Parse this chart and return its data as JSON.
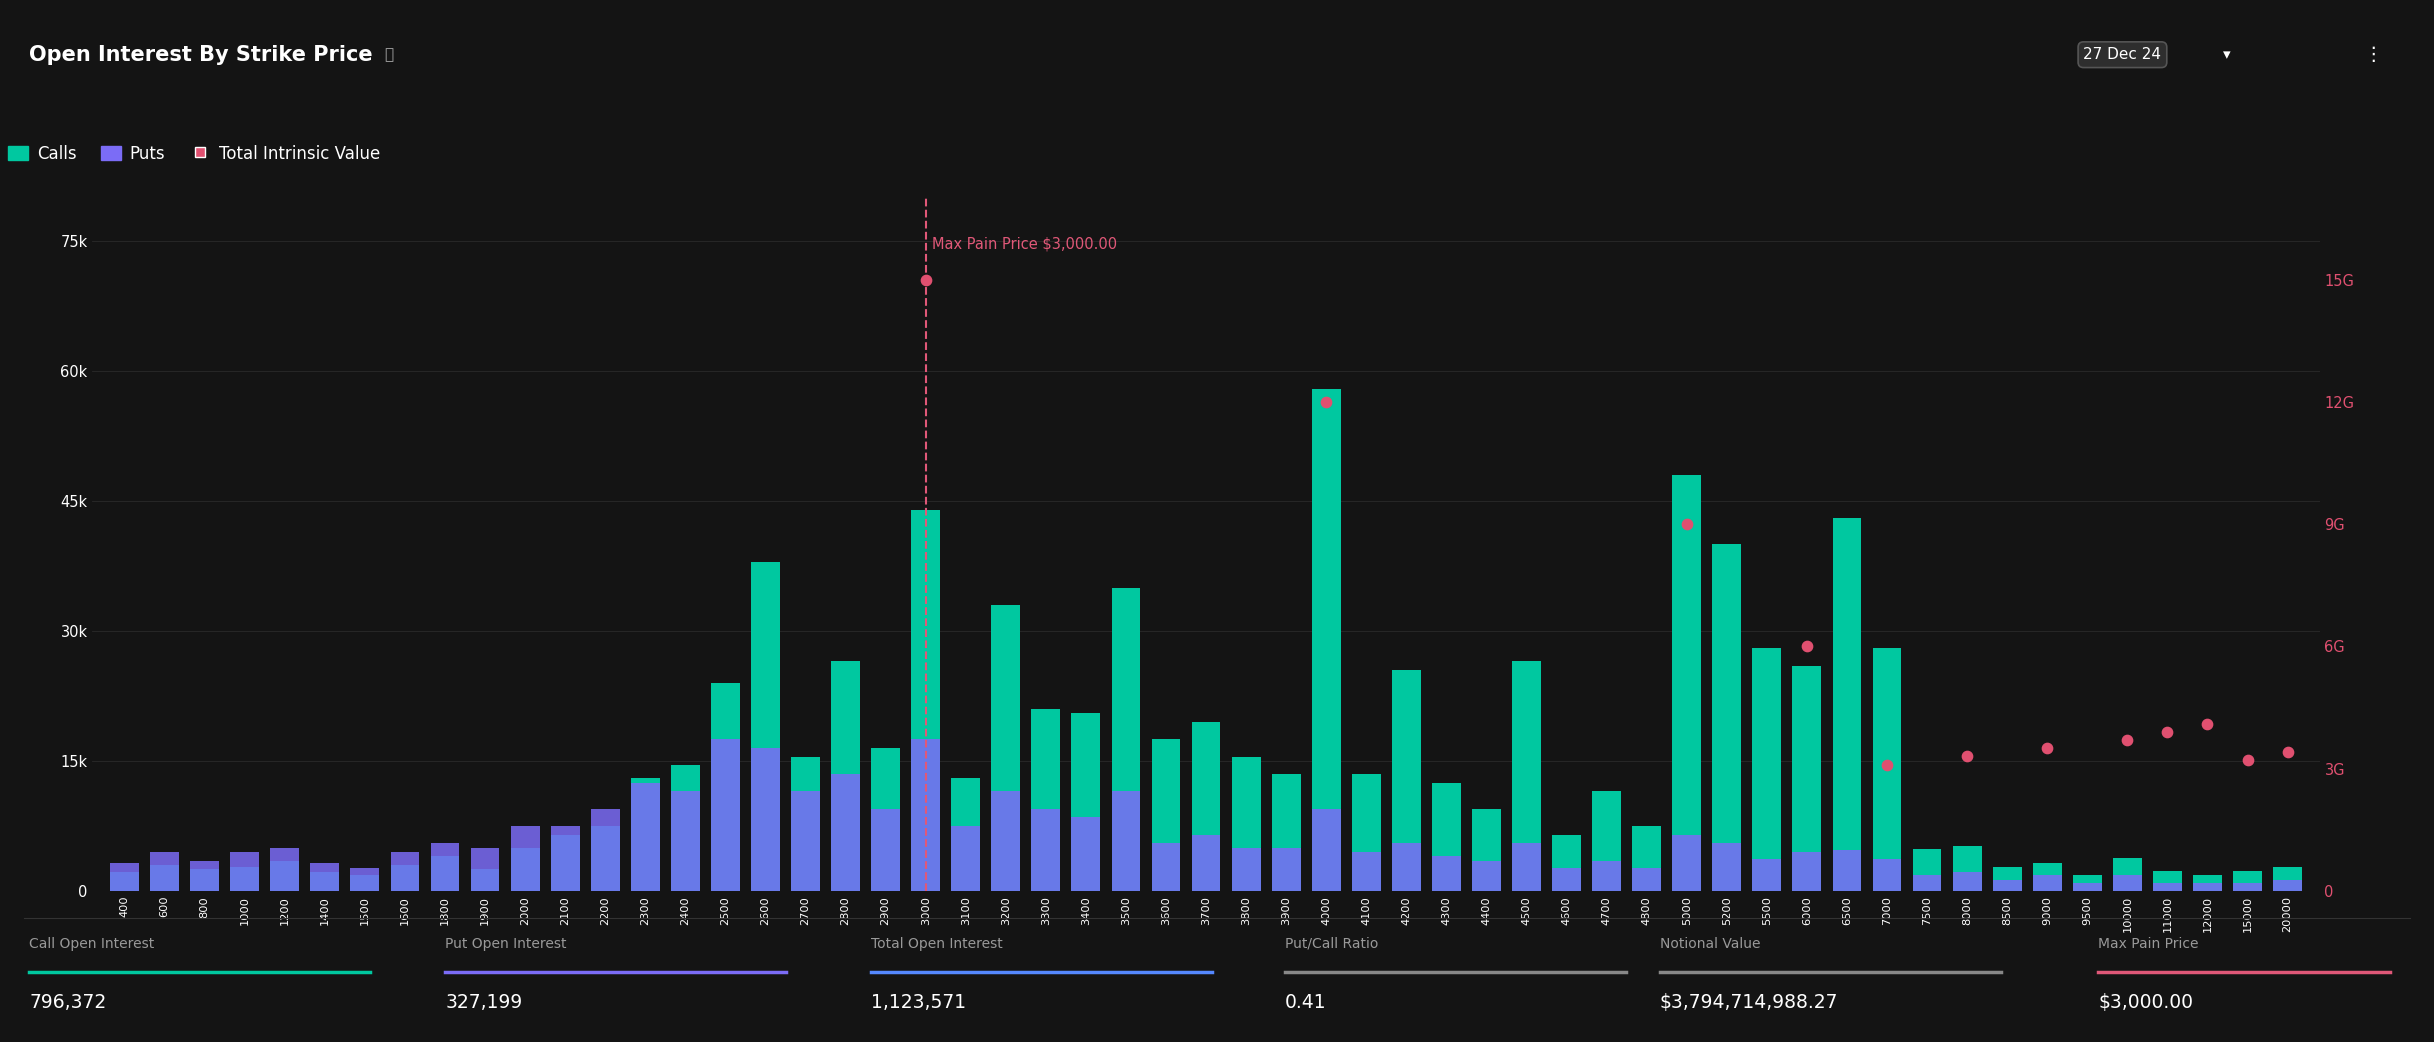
{
  "title": "Open Interest By Strike Price",
  "background_color": "#141414",
  "header_color": "#1c1c1c",
  "text_color": "#ffffff",
  "calls_color": "#00c8a0",
  "puts_color": "#7b6cf6",
  "intrinsic_color": "#e05070",
  "max_pain_line_color": "#e05878",
  "max_pain_price": 3000,
  "date_label": "27 Dec 24",
  "strikes": [
    "400",
    "600",
    "800",
    "1000",
    "1200",
    "1400",
    "1500",
    "1600",
    "1800",
    "1900",
    "2000",
    "2100",
    "2200",
    "2300",
    "2400",
    "2500",
    "2600",
    "2700",
    "2800",
    "2900",
    "3000",
    "3100",
    "3200",
    "3300",
    "3400",
    "3500",
    "3600",
    "3700",
    "3800",
    "3900",
    "4000",
    "4100",
    "4200",
    "4300",
    "4400",
    "4500",
    "4600",
    "4700",
    "4800",
    "5000",
    "5200",
    "5500",
    "6000",
    "6500",
    "7000",
    "7500",
    "8000",
    "8500",
    "9000",
    "9500",
    "10000",
    "11000",
    "12000",
    "15000",
    "20000"
  ],
  "max_pain_index": 20,
  "calls": [
    2200,
    3000,
    2500,
    2800,
    3500,
    2200,
    1800,
    3000,
    4000,
    2500,
    5000,
    6500,
    7500,
    13000,
    14500,
    24000,
    38000,
    15500,
    26500,
    16500,
    44000,
    13000,
    33000,
    21000,
    20500,
    35000,
    17500,
    19500,
    15500,
    13500,
    58000,
    13500,
    25500,
    12500,
    9500,
    26500,
    6500,
    11500,
    7500,
    48000,
    40000,
    28000,
    26000,
    43000,
    28000,
    4800,
    5200,
    2800,
    3200,
    1800,
    3800,
    2300,
    1800,
    2300,
    2800
  ],
  "puts": [
    3200,
    4500,
    3500,
    4500,
    5000,
    3200,
    2700,
    4500,
    5500,
    5000,
    7500,
    7500,
    9500,
    12500,
    11500,
    17500,
    16500,
    11500,
    13500,
    9500,
    17500,
    7500,
    11500,
    9500,
    8500,
    11500,
    5500,
    6500,
    5000,
    5000,
    9500,
    4500,
    5500,
    4000,
    3500,
    5500,
    2700,
    3500,
    2700,
    6500,
    5500,
    3700,
    4500,
    4700,
    3700,
    1800,
    2200,
    1300,
    1800,
    900,
    1800,
    900,
    900,
    900,
    1300
  ],
  "left_yticks": [
    0,
    15000,
    30000,
    45000,
    60000,
    75000
  ],
  "left_ylabels": [
    "0",
    "15k",
    "30k",
    "45k",
    "60k",
    "75k"
  ],
  "right_ylabels": [
    "0",
    "3G",
    "6G",
    "9G",
    "12G",
    "15G"
  ],
  "right_ytick_vals": [
    0,
    3000000000,
    6000000000,
    9000000000,
    12000000000,
    15000000000
  ],
  "footer_labels": [
    "Call Open Interest",
    "Put Open Interest",
    "Total Open Interest",
    "Put/Call Ratio",
    "Notional Value",
    "Max Pain Price"
  ],
  "footer_values": [
    "796,372",
    "327,199",
    "1,123,571",
    "0.41",
    "$3,794,714,988.27",
    "$3,000.00"
  ],
  "footer_colors": [
    "#00c8a0",
    "#7b6cf6",
    "#5588ff",
    "#888888",
    "#888888",
    "#e05878"
  ],
  "intrinsic_dots": [
    {
      "idx": 20,
      "value": 15000000000
    },
    {
      "idx": 30,
      "value": 12000000000
    },
    {
      "idx": 39,
      "value": 9000000000
    },
    {
      "idx": 42,
      "value": 6000000000
    },
    {
      "idx": 44,
      "value": 3100000000
    },
    {
      "idx": 46,
      "value": 3300000000
    },
    {
      "idx": 48,
      "value": 3500000000
    },
    {
      "idx": 50,
      "value": 3700000000
    },
    {
      "idx": 51,
      "value": 3900000000
    },
    {
      "idx": 52,
      "value": 4100000000
    },
    {
      "idx": 53,
      "value": 3200000000
    },
    {
      "idx": 54,
      "value": 3400000000
    }
  ]
}
